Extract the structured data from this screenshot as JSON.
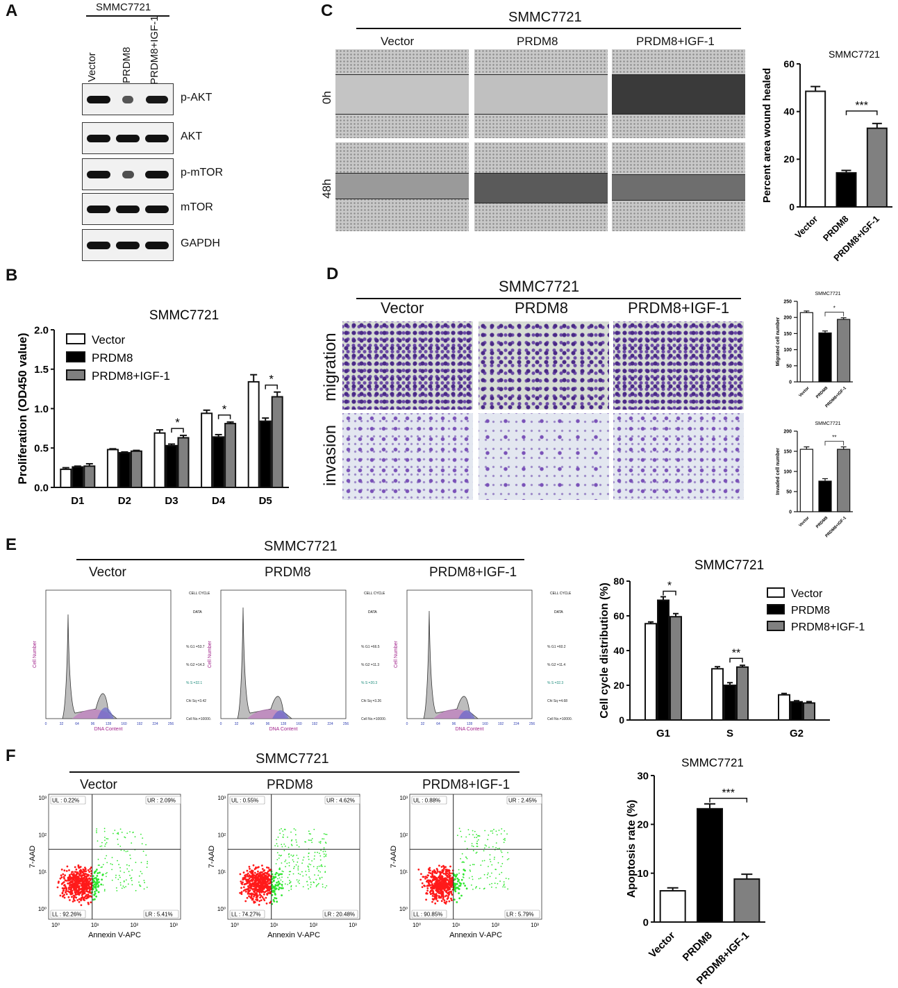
{
  "panels": {
    "A": {
      "letter": "A",
      "title": "SMMC7721",
      "lanes": [
        "Vector",
        "PRDM8",
        "PRDM8+IGF-1"
      ],
      "blots": [
        {
          "label": "p-AKT",
          "intensity": [
            1.0,
            0.45,
            0.95
          ]
        },
        {
          "label": "AKT",
          "intensity": [
            1.0,
            1.0,
            1.0
          ]
        },
        {
          "label": "p-mTOR",
          "intensity": [
            1.0,
            0.5,
            1.0
          ]
        },
        {
          "label": "mTOR",
          "intensity": [
            1.0,
            1.0,
            1.0
          ]
        },
        {
          "label": "GAPDH",
          "intensity": [
            1.0,
            1.0,
            1.0
          ]
        }
      ]
    },
    "B": {
      "letter": "B"
    },
    "C": {
      "letter": "C",
      "title": "SMMC7721",
      "columns": [
        "Vector",
        "PRDM8",
        "PRDM8+IGF-1"
      ],
      "rows": [
        "0h",
        "48h"
      ]
    },
    "D": {
      "letter": "D",
      "title": "SMMC7721",
      "columns": [
        "Vector",
        "PRDM8",
        "PRDM8+IGF-1"
      ],
      "rows": [
        "migration",
        "invasion"
      ]
    },
    "E": {
      "letter": "E",
      "title": "SMMC7721",
      "columns": [
        "Vector",
        "PRDM8",
        "PRDM8+IGF-1"
      ],
      "hist_xlabel": "DNA Content",
      "hist_ylabel": "Cell Number",
      "side_header": [
        "CELL CYCLE",
        "DATA"
      ],
      "side_stats": [
        [
          "% G1 =53.7",
          "% G2 =14.3",
          "% S =32.1",
          "Chi Sq =3.42",
          "Cell No.=10000."
        ],
        [
          "% G1 =66.5",
          "% G2 =11.3",
          "% S =20.3",
          "Chi Sq =3.26",
          "Cell No.=10000."
        ],
        [
          "% G1 =60.2",
          "% G2 =11.4",
          "% S =32.3",
          "Chi Sq =4.68",
          "Cell No.=10000."
        ]
      ],
      "hist_xticks": [
        "0",
        "32",
        "64",
        "96",
        "128",
        "160",
        "192",
        "224",
        "256"
      ]
    },
    "F": {
      "letter": "F",
      "title": "SMMC7721",
      "columns": [
        "Vector",
        "PRDM8",
        "PRDM8+IGF-1"
      ],
      "xlabel": "Annexin V-APC",
      "ylabel": "7-AAD",
      "quadrants": [
        {
          "UL": "UL : 0.22%",
          "UR": "UR : 2.09%",
          "LL": "LL : 92.26%",
          "LR": "LR : 5.41%"
        },
        {
          "UL": "UL : 0.55%",
          "UR": "UR : 4.62%",
          "LL": "LL : 74.27%",
          "LR": "LR : 20.48%"
        },
        {
          "UL": "UL : 0.88%",
          "UR": "UR : 2.45%",
          "LL": "LL : 90.85%",
          "LR": "LR : 5.79%"
        }
      ],
      "log_ticks": [
        "10⁰",
        "10¹",
        "10²",
        "10³"
      ]
    }
  },
  "colors": {
    "vector": "#ffffff",
    "prdm8": "#000000",
    "igf": "#808080",
    "red_dots": "#ff1a1a",
    "green_dots": "#2ee62e"
  },
  "chart_data": [
    {
      "id": "B",
      "type": "bar",
      "title": "SMMC7721",
      "ylabel": "Proliferation (OD450 value)",
      "xlabel": "",
      "categories": [
        "D1",
        "D2",
        "D3",
        "D4",
        "D5"
      ],
      "series": [
        {
          "name": "Vector",
          "values": [
            0.23,
            0.48,
            0.69,
            0.94,
            1.34
          ],
          "errors": [
            0.02,
            0.01,
            0.04,
            0.04,
            0.09
          ]
        },
        {
          "name": "PRDM8",
          "values": [
            0.26,
            0.44,
            0.53,
            0.64,
            0.84
          ],
          "errors": [
            0.01,
            0.01,
            0.02,
            0.03,
            0.04
          ]
        },
        {
          "name": "PRDM8+IGF-1",
          "values": [
            0.27,
            0.46,
            0.63,
            0.81,
            1.15
          ],
          "errors": [
            0.03,
            0.01,
            0.03,
            0.02,
            0.06
          ]
        }
      ],
      "ylim": [
        0,
        2.0
      ],
      "yticks": [
        "0.0",
        "0.5",
        "1.0",
        "1.5",
        "2.0"
      ],
      "annotations": [
        "*",
        "*",
        "*"
      ],
      "legend": "top-left"
    },
    {
      "id": "C",
      "type": "bar",
      "title": "SMMC7721",
      "ylabel": "Percent area wound healed",
      "categories": [
        "Vector",
        "PRDM8",
        "PRDM8+IGF-1"
      ],
      "values": [
        48.5,
        14.3,
        33.0
      ],
      "errors": [
        2.0,
        1.0,
        2.0
      ],
      "ylim": [
        0,
        60
      ],
      "yticks": [
        "0",
        "20",
        "40",
        "60"
      ],
      "annotations": [
        "***"
      ]
    },
    {
      "id": "D-migration",
      "type": "bar",
      "title": "SMMC7721",
      "ylabel": "Migrated cell number",
      "categories": [
        "Vector",
        "PRDM8",
        "PRDM8+IGF-1"
      ],
      "values": [
        215,
        152,
        194
      ],
      "errors": [
        5,
        6,
        5
      ],
      "ylim": [
        0,
        250
      ],
      "yticks": [
        "0",
        "50",
        "100",
        "150",
        "200",
        "250"
      ],
      "annotations": [
        "*"
      ]
    },
    {
      "id": "D-invasion",
      "type": "bar",
      "title": "SMMC7721",
      "ylabel": "Invaded cell number",
      "categories": [
        "Vector",
        "PRDM8",
        "PRDM8+IGF-1"
      ],
      "values": [
        155,
        76,
        155
      ],
      "errors": [
        6,
        6,
        6
      ],
      "ylim": [
        0,
        200
      ],
      "yticks": [
        "0",
        "50",
        "100",
        "150",
        "200"
      ],
      "annotations": [
        "**"
      ]
    },
    {
      "id": "E",
      "type": "bar",
      "title": "SMMC7721",
      "ylabel": "Cell cycle distribution (%)",
      "categories": [
        "G1",
        "S",
        "G2"
      ],
      "series": [
        {
          "name": "Vector",
          "values": [
            55.5,
            29.5,
            14.5
          ],
          "errors": [
            1.0,
            1.2,
            0.8
          ]
        },
        {
          "name": "PRDM8",
          "values": [
            69.0,
            20.0,
            10.5
          ],
          "errors": [
            2.0,
            1.5,
            0.6
          ]
        },
        {
          "name": "PRDM8+IGF-1",
          "values": [
            59.5,
            30.5,
            9.8
          ],
          "errors": [
            1.8,
            1.0,
            0.8
          ]
        }
      ],
      "ylim": [
        0,
        80
      ],
      "yticks": [
        "0",
        "20",
        "40",
        "60",
        "80"
      ],
      "annotations": [
        "*",
        "**"
      ],
      "legend": "top-right"
    },
    {
      "id": "F",
      "type": "bar",
      "title": "SMMC7721",
      "ylabel": "Apoptosis rate (%)",
      "categories": [
        "Vector",
        "PRDM8",
        "PRDM8+IGF-1"
      ],
      "values": [
        6.4,
        23.2,
        8.8
      ],
      "errors": [
        0.6,
        1.0,
        1.0
      ],
      "ylim": [
        0,
        30
      ],
      "yticks": [
        "0",
        "10",
        "20",
        "30"
      ],
      "annotations": [
        "***"
      ]
    }
  ]
}
